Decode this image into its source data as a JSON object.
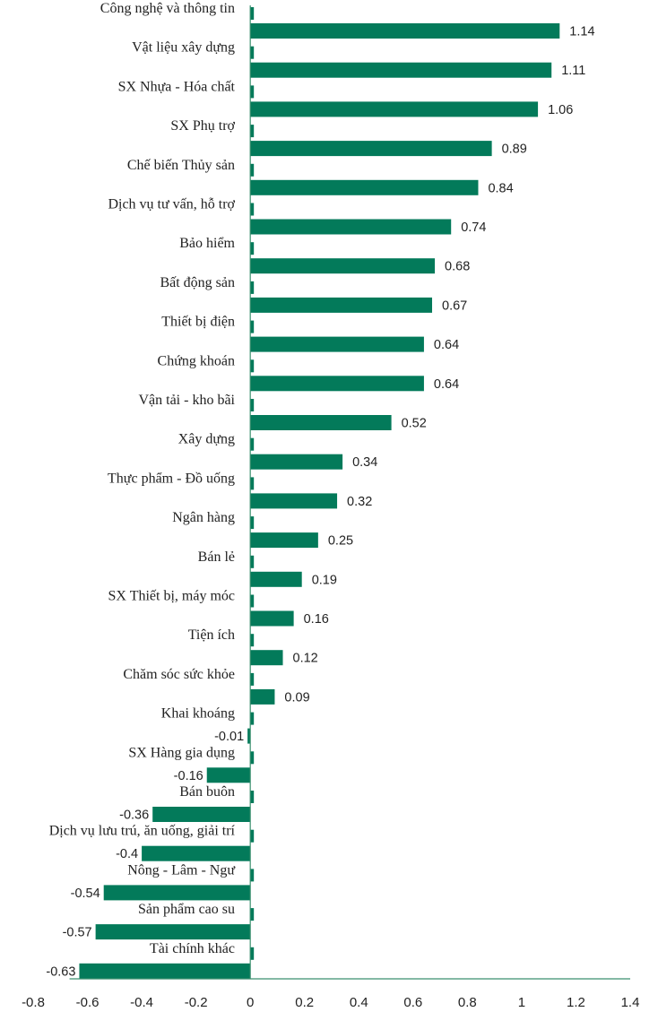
{
  "chart_data": {
    "type": "bar",
    "orientation": "horizontal",
    "categories": [
      "Công nghệ và thông tin",
      "Vật liệu  xây dựng",
      "SX Nhựa - Hóa chất",
      "SX Phụ trợ",
      "Chế biến Thủy sản",
      "Dịch vụ tư vấn, hỗ trợ",
      "Bảo hiểm",
      "Bất động sản",
      "Thiết bị điện",
      "Chứng khoán",
      "Vận tải - kho bãi",
      "Xây dựng",
      "Thực phẩm - Đồ uống",
      "Ngân hàng",
      "Bán lẻ",
      "SX Thiết bị, máy móc",
      "Tiện ích",
      "Chăm sóc sức khỏe",
      "Khai khoáng",
      "SX Hàng gia dụng",
      "Bán buôn",
      "Dịch vụ lưu trú, ăn uống, giải trí",
      "Nông - Lâm - Ngư",
      "Sản phẩm cao su",
      "Tài chính khác"
    ],
    "values": [
      1.14,
      1.11,
      1.06,
      0.89,
      0.84,
      0.74,
      0.68,
      0.67,
      0.64,
      0.64,
      0.52,
      0.34,
      0.32,
      0.25,
      0.19,
      0.16,
      0.12,
      0.09,
      -0.01,
      -0.16,
      -0.36,
      -0.4,
      -0.54,
      -0.57,
      -0.63
    ],
    "value_labels": [
      "1.14",
      "1.11",
      "1.06",
      "0.89",
      "0.84",
      "0.74",
      "0.68",
      "0.67",
      "0.64",
      "0.64",
      "0.52",
      "0.34",
      "0.32",
      "0.25",
      "0.19",
      "0.16",
      "0.12",
      "0.09",
      "-0.01",
      "-0.16",
      "-0.36",
      "-0.4",
      "-0.54",
      "-0.57",
      "-0.63"
    ],
    "xlim": [
      -0.8,
      1.4
    ],
    "xticks": [
      "-0.8",
      "-0.6",
      "-0.4",
      "-0.2",
      "0",
      "0.2",
      "0.4",
      "0.6",
      "0.8",
      "1",
      "1.2",
      "1.4"
    ],
    "bar_color": "#037a5a",
    "axis_color": "#3b8f6f",
    "grid": false,
    "legend": false,
    "title": "",
    "xlabel": "",
    "ylabel": ""
  }
}
